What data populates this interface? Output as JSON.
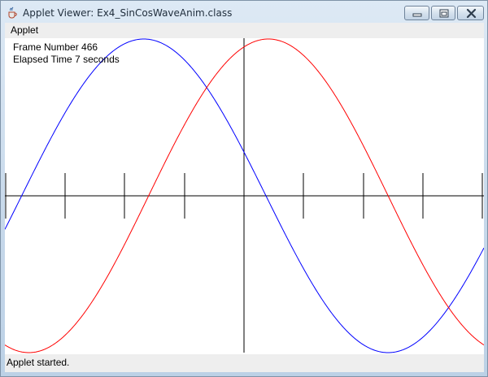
{
  "window": {
    "title": "Applet Viewer: Ex4_SinCosWaveAnim.class",
    "icon": "java-cup-icon",
    "controls": [
      "minimize-icon",
      "maximize-icon",
      "close-icon"
    ]
  },
  "menu": {
    "items": [
      "Applet"
    ]
  },
  "animation": {
    "frame_label": "Frame Number",
    "frame_number": "466",
    "elapsed_prefix": "Elapsed Time",
    "elapsed_value": "7",
    "elapsed_suffix": "seconds"
  },
  "status": {
    "text": "Applet started."
  },
  "colors": {
    "sine_curve": "#0000ff",
    "cosine_curve": "#ff0000",
    "axes": "#000000"
  },
  "chart_data": {
    "type": "line",
    "title": "",
    "xlabel": "",
    "ylabel": "",
    "x_tick_marks_left_of_origin": 4,
    "x_tick_marks_right_of_origin": 4,
    "series": [
      {
        "color": "#0000ff",
        "shape": "sine wave",
        "peak_x_fraction_of_width": 0.29,
        "trough_x_fraction_of_width": 0.8
      },
      {
        "color": "#ff0000",
        "shape": "sine wave",
        "peak_x_fraction_of_width": 0.55,
        "trough_x_fraction_of_width": 0.05
      }
    ]
  }
}
